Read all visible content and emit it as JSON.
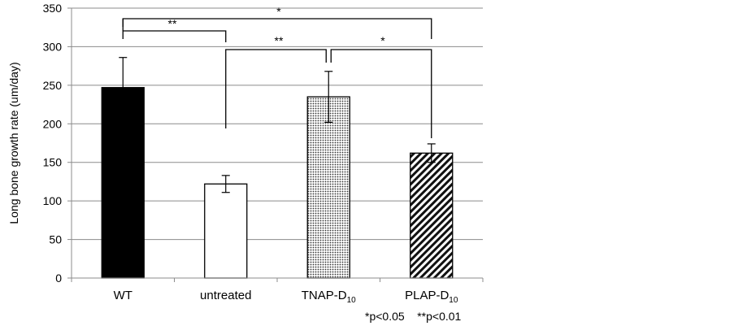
{
  "chart_data": {
    "type": "bar",
    "title": "",
    "xlabel": "",
    "ylabel": "Long bone growth rate (um/day)",
    "ylim": [
      0,
      350
    ],
    "yticks": [
      0,
      50,
      100,
      150,
      200,
      250,
      300,
      350
    ],
    "grid": true,
    "categories": [
      {
        "label": "WT",
        "sub": ""
      },
      {
        "label": "untreated",
        "sub": ""
      },
      {
        "label": "TNAP-D",
        "sub": "10"
      },
      {
        "label": "PLAP-D",
        "sub": "10"
      }
    ],
    "values": [
      247,
      122,
      235,
      162
    ],
    "errors": [
      39,
      11,
      33,
      12
    ],
    "fills": [
      "solid-black",
      "white",
      "dotted",
      "diagonal-hatch"
    ],
    "significance": [
      {
        "from": 0,
        "to": 3,
        "label": "*"
      },
      {
        "from": 0,
        "to": 1,
        "label": "**"
      },
      {
        "from": 1,
        "to": 2,
        "label": "**"
      },
      {
        "from": 2,
        "to": 3,
        "label": "*"
      }
    ],
    "footnote": "*p<0.05    **p<0.01"
  }
}
